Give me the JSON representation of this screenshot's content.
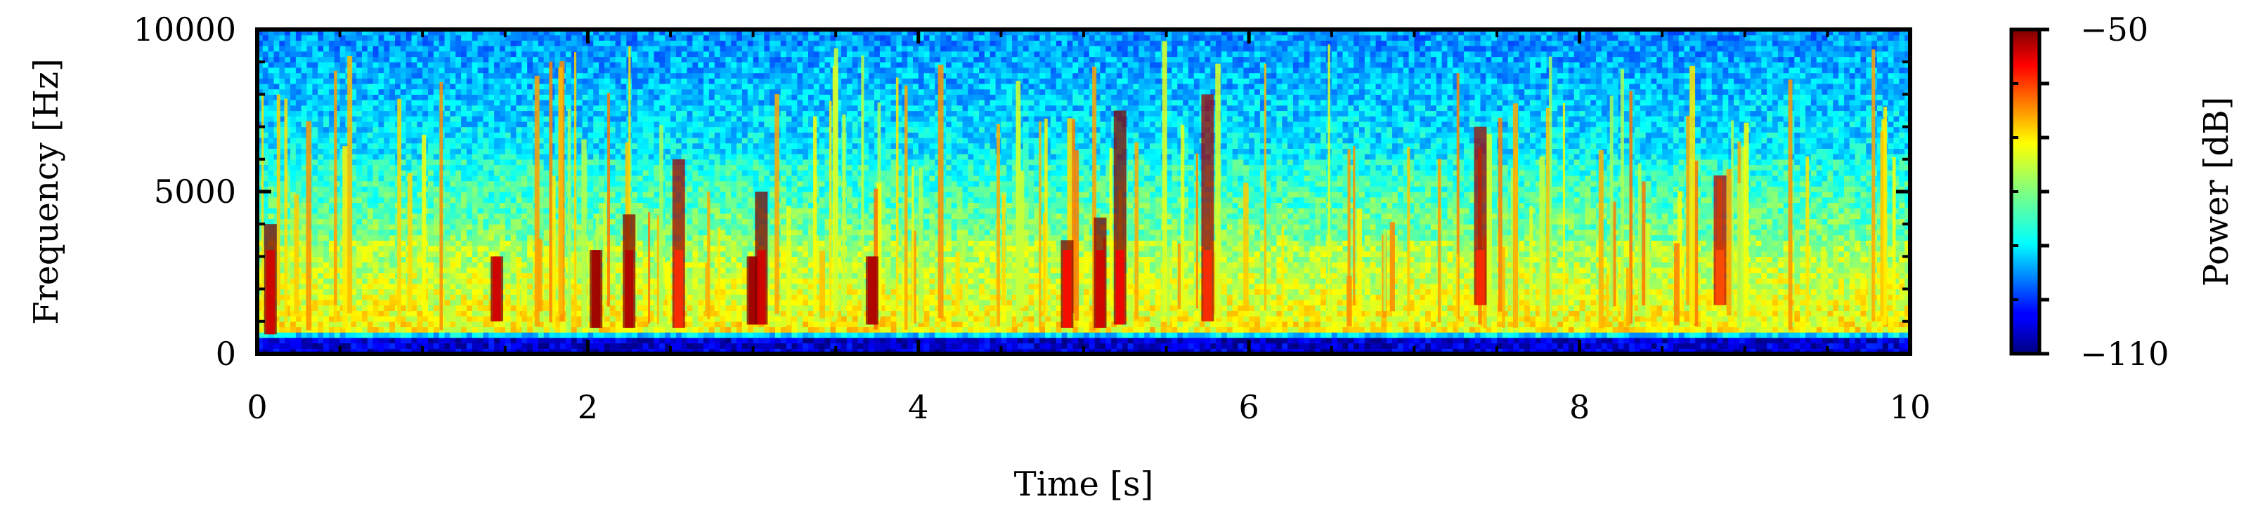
{
  "chart_data": {
    "type": "heatmap",
    "title": "",
    "xlabel": "Time [s]",
    "ylabel": "Frequency [Hz]",
    "xlim": [
      0,
      10
    ],
    "ylim": [
      0,
      10000
    ],
    "x_ticks": [
      "0",
      "2",
      "4",
      "6",
      "8",
      "10"
    ],
    "x_tick_values": [
      0,
      2,
      4,
      6,
      8,
      10
    ],
    "y_ticks": [
      "0",
      "5000",
      "10000"
    ],
    "y_tick_values": [
      0,
      5000,
      10000
    ],
    "colormap": "jet",
    "grid": false,
    "colorbar": {
      "label": "Power [dB]",
      "min_label": "−110",
      "max_label": "−50",
      "range": [
        -110,
        -50
      ]
    },
    "description_of_field": {
      "low_band_hz": [
        0,
        500
      ],
      "low_band_power_db": -105,
      "mid_band_hz": [
        600,
        3500
      ],
      "mid_band_power_db": -72,
      "upper_band_hz": [
        3500,
        10000
      ],
      "upper_band_power_db": -88
    },
    "strong_events": [
      {
        "t": 0.08,
        "f_low": 600,
        "f_high": 4000,
        "power_db": -55
      },
      {
        "t": 1.45,
        "f_low": 1000,
        "f_high": 3000,
        "power_db": -55
      },
      {
        "t": 2.05,
        "f_low": 800,
        "f_high": 3200,
        "power_db": -52
      },
      {
        "t": 2.25,
        "f_low": 800,
        "f_high": 4300,
        "power_db": -53
      },
      {
        "t": 2.55,
        "f_low": 800,
        "f_high": 6000,
        "power_db": -60
      },
      {
        "t": 3.0,
        "f_low": 900,
        "f_high": 3000,
        "power_db": -52
      },
      {
        "t": 3.05,
        "f_low": 900,
        "f_high": 5000,
        "power_db": -55
      },
      {
        "t": 3.72,
        "f_low": 900,
        "f_high": 3000,
        "power_db": -53
      },
      {
        "t": 4.9,
        "f_low": 800,
        "f_high": 3500,
        "power_db": -58
      },
      {
        "t": 5.1,
        "f_low": 800,
        "f_high": 4200,
        "power_db": -55
      },
      {
        "t": 5.22,
        "f_low": 900,
        "f_high": 7500,
        "power_db": -57
      },
      {
        "t": 5.75,
        "f_low": 1000,
        "f_high": 8000,
        "power_db": -60
      },
      {
        "t": 7.4,
        "f_low": 1500,
        "f_high": 7000,
        "power_db": -60
      },
      {
        "t": 8.85,
        "f_low": 1500,
        "f_high": 5500,
        "power_db": -62
      }
    ]
  }
}
